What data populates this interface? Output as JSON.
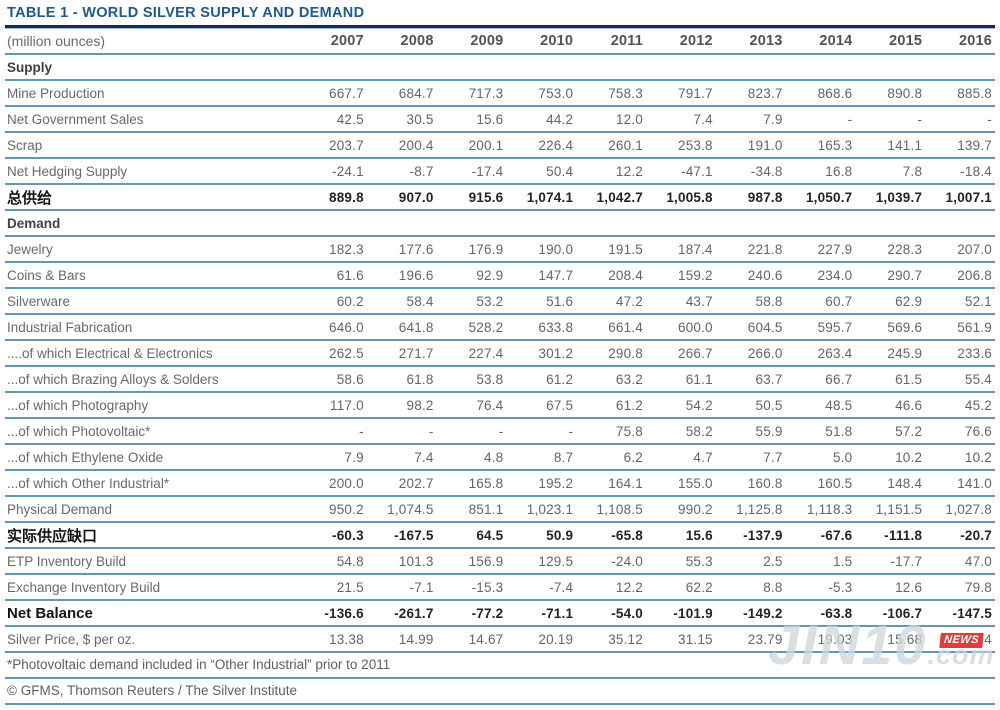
{
  "title": "TABLE 1 - WORLD SILVER SUPPLY AND DEMAND",
  "chart_data": {
    "type": "table",
    "title": "TABLE 1 - WORLD SILVER SUPPLY AND DEMAND",
    "unit_label": "(million ounces)",
    "columns": [
      "2007",
      "2008",
      "2009",
      "2010",
      "2011",
      "2012",
      "2013",
      "2014",
      "2015",
      "2016"
    ],
    "rows": [
      {
        "label": "Supply",
        "type": "section",
        "values": []
      },
      {
        "label": "Mine Production",
        "type": "normal",
        "values": [
          "667.7",
          "684.7",
          "717.3",
          "753.0",
          "758.3",
          "791.7",
          "823.7",
          "868.6",
          "890.8",
          "885.8"
        ]
      },
      {
        "label": "Net Government Sales",
        "type": "normal",
        "values": [
          "42.5",
          "30.5",
          "15.6",
          "44.2",
          "12.0",
          "7.4",
          "7.9",
          "-",
          "-",
          "-"
        ]
      },
      {
        "label": "Scrap",
        "type": "normal",
        "values": [
          "203.7",
          "200.4",
          "200.1",
          "226.4",
          "260.1",
          "253.8",
          "191.0",
          "165.3",
          "141.1",
          "139.7"
        ]
      },
      {
        "label": "Net Hedging Supply",
        "type": "normal",
        "values": [
          "-24.1",
          "-8.7",
          "-17.4",
          "50.4",
          "12.2",
          "-47.1",
          "-34.8",
          "16.8",
          "7.8",
          "-18.4"
        ]
      },
      {
        "label": "总供给",
        "type": "bold",
        "values": [
          "889.8",
          "907.0",
          "915.6",
          "1,074.1",
          "1,042.7",
          "1,005.8",
          "987.8",
          "1,050.7",
          "1,039.7",
          "1,007.1"
        ]
      },
      {
        "label": "Demand",
        "type": "section",
        "values": []
      },
      {
        "label": "Jewelry",
        "type": "normal",
        "values": [
          "182.3",
          "177.6",
          "176.9",
          "190.0",
          "191.5",
          "187.4",
          "221.8",
          "227.9",
          "228.3",
          "207.0"
        ]
      },
      {
        "label": "Coins & Bars",
        "type": "normal",
        "values": [
          "61.6",
          "196.6",
          "92.9",
          "147.7",
          "208.4",
          "159.2",
          "240.6",
          "234.0",
          "290.7",
          "206.8"
        ]
      },
      {
        "label": "Silverware",
        "type": "normal",
        "values": [
          "60.2",
          "58.4",
          "53.2",
          "51.6",
          "47.2",
          "43.7",
          "58.8",
          "60.7",
          "62.9",
          "52.1"
        ]
      },
      {
        "label": "Industrial Fabrication",
        "type": "normal",
        "values": [
          "646.0",
          "641.8",
          "528.2",
          "633.8",
          "661.4",
          "600.0",
          "604.5",
          "595.7",
          "569.6",
          "561.9"
        ]
      },
      {
        "label": "....of which Electrical & Electronics",
        "type": "normal",
        "values": [
          "262.5",
          "271.7",
          "227.4",
          "301.2",
          "290.8",
          "266.7",
          "266.0",
          "263.4",
          "245.9",
          "233.6"
        ]
      },
      {
        "label": "...of which Brazing Alloys & Solders",
        "type": "normal",
        "values": [
          "58.6",
          "61.8",
          "53.8",
          "61.2",
          "63.2",
          "61.1",
          "63.7",
          "66.7",
          "61.5",
          "55.4"
        ]
      },
      {
        "label": "...of which Photography",
        "type": "normal",
        "values": [
          "117.0",
          "98.2",
          "76.4",
          "67.5",
          "61.2",
          "54.2",
          "50.5",
          "48.5",
          "46.6",
          "45.2"
        ]
      },
      {
        "label": "...of which Photovoltaic*",
        "type": "normal",
        "values": [
          "-",
          "-",
          "-",
          "-",
          "75.8",
          "58.2",
          "55.9",
          "51.8",
          "57.2",
          "76.6"
        ]
      },
      {
        "label": "...of which Ethylene Oxide",
        "type": "normal",
        "values": [
          "7.9",
          "7.4",
          "4.8",
          "8.7",
          "6.2",
          "4.7",
          "7.7",
          "5.0",
          "10.2",
          "10.2"
        ]
      },
      {
        "label": "...of which Other Industrial*",
        "type": "normal",
        "values": [
          "200.0",
          "202.7",
          "165.8",
          "195.2",
          "164.1",
          "155.0",
          "160.8",
          "160.5",
          "148.4",
          "141.0"
        ]
      },
      {
        "label": "Physical Demand",
        "type": "normal",
        "values": [
          "950.2",
          "1,074.5",
          "851.1",
          "1,023.1",
          "1,108.5",
          "990.2",
          "1,125.8",
          "1,118.3",
          "1,151.5",
          "1,027.8"
        ]
      },
      {
        "label": "实际供应缺口",
        "type": "bold",
        "values": [
          "-60.3",
          "-167.5",
          "64.5",
          "50.9",
          "-65.8",
          "15.6",
          "-137.9",
          "-67.6",
          "-111.8",
          "-20.7"
        ]
      },
      {
        "label": "ETP Inventory Build",
        "type": "normal",
        "values": [
          "54.8",
          "101.3",
          "156.9",
          "129.5",
          "-24.0",
          "55.3",
          "2.5",
          "1.5",
          "-17.7",
          "47.0"
        ]
      },
      {
        "label": "Exchange Inventory Build",
        "type": "normal",
        "values": [
          "21.5",
          "-7.1",
          "-15.3",
          "-7.4",
          "12.2",
          "62.2",
          "8.8",
          "-5.3",
          "12.6",
          "79.8"
        ]
      },
      {
        "label": "Net Balance",
        "type": "bold",
        "values": [
          "-136.6",
          "-261.7",
          "-77.2",
          "-71.1",
          "-54.0",
          "-101.9",
          "-149.2",
          "-63.8",
          "-106.7",
          "-147.5"
        ]
      },
      {
        "label": "Silver Price, $ per oz.",
        "type": "normal",
        "values": [
          "13.38",
          "14.99",
          "14.67",
          "20.19",
          "35.12",
          "31.15",
          "23.79",
          "19.03",
          "15.68",
          "17.14"
        ]
      }
    ],
    "footnotes": [
      "*Photovoltaic demand included in “Other Industrial” prior to 2011",
      "© GFMS, Thomson Reuters / The Silver Institute"
    ]
  },
  "watermark": {
    "text": "JIN10",
    "suffix": ".com",
    "badge": "NEWS"
  },
  "colors": {
    "title_text": "#1d5b8c",
    "title_rule": "#16294e",
    "title_rule_edge": "#9cc3d6",
    "row_line": "#6495b3",
    "body_text": "#68686e",
    "bold_text": "#232327",
    "badge_bg": "#e23c3c",
    "watermark_text": "#cbd7df"
  }
}
